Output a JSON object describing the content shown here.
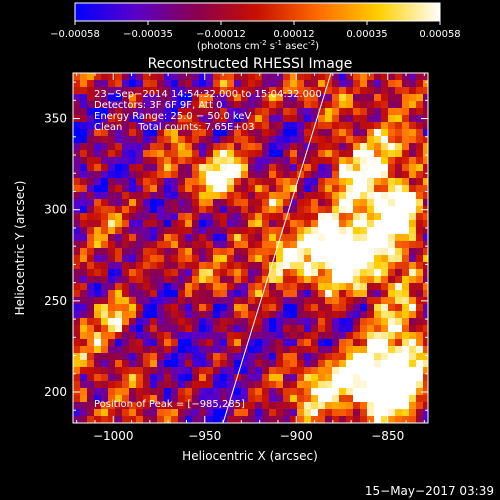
{
  "chart_data": {
    "type": "heatmap",
    "colorbar": {
      "ticks": [
        "-0.00058",
        "-0.00035",
        "-0.00012",
        "0.00012",
        "0.00035",
        "0.00058"
      ],
      "range": [
        -0.00058,
        0.00058
      ],
      "unit_main": "(photons cm",
      "unit_sup1": "-2",
      "unit_mid": " s",
      "unit_sup2": "-1",
      "unit_end": " asec",
      "unit_sup3": "-2",
      "unit_close": ")",
      "colors": [
        "#0000ff",
        "#5a00c8",
        "#8a0050",
        "#c81000",
        "#ff6a00",
        "#ffd000",
        "#ffffff"
      ]
    },
    "title": "Reconstructed RHESSI Image",
    "xlabel": "Heliocentric X (arcsec)",
    "ylabel": "Heliocentric Y (arcsec)",
    "xlim": [
      -1022,
      -828
    ],
    "ylim": [
      183,
      375
    ],
    "xticks": [
      {
        "value": -1000,
        "label": "−1000"
      },
      {
        "value": -950,
        "label": "−950"
      },
      {
        "value": -900,
        "label": "−900"
      },
      {
        "value": -850,
        "label": "−850"
      }
    ],
    "yticks": [
      {
        "value": 200,
        "label": "200"
      },
      {
        "value": 250,
        "label": "250"
      },
      {
        "value": 300,
        "label": "300"
      },
      {
        "value": 350,
        "label": "350"
      }
    ],
    "annotations": {
      "line1": "23−Sep−2014 14:54:32.000 to 15:04:32.000",
      "line2": "Detectors: 3F 6F 9F, Att 0",
      "line3": "Energy Range: 25.0 − 50.0 keV",
      "line4": "Clean     Total counts: 7.65E+03",
      "peak": "Position of Peak = [−985,285]"
    },
    "limb_line": {
      "x1": -940,
      "y1": 183,
      "x2": -881,
      "y2": 375
    },
    "peak": {
      "x": -985,
      "y": 285
    },
    "grid": false
  },
  "footer": {
    "timestamp": "15−May−2017 03:39"
  }
}
